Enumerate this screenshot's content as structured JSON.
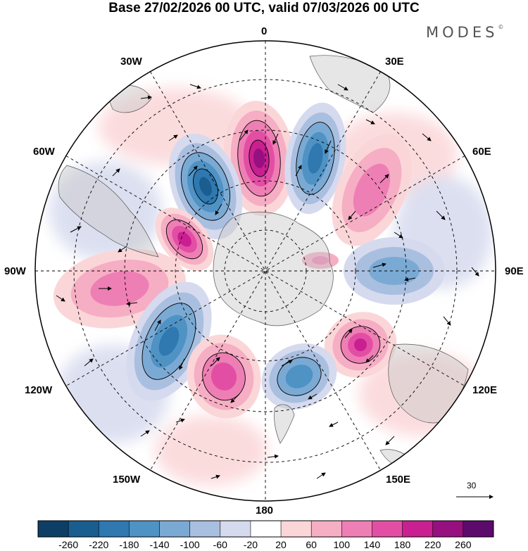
{
  "title": "Base 27/02/2026 00 UTC, valid 07/03/2026 00 UTC",
  "brand": "MODES",
  "brand_mark": "©",
  "longitude_labels": {
    "lon_0": "0",
    "lon_30e": "30E",
    "lon_60e": "60E",
    "lon_90e": "90E",
    "lon_120e": "120E",
    "lon_150e": "150E",
    "lon_180": "180",
    "lon_150w": "150W",
    "lon_120w": "120W",
    "lon_90w": "90W",
    "lon_60w": "60W",
    "lon_30w": "30W"
  },
  "reference_vector": "30",
  "colorbar": {
    "labels": [
      "-260",
      "-220",
      "-180",
      "-140",
      "-100",
      "-60",
      "-20",
      "20",
      "60",
      "100",
      "140",
      "180",
      "220",
      "260"
    ],
    "colors": [
      "#0d3f66",
      "#1a5d8f",
      "#2f78b0",
      "#4f92c4",
      "#7aaad4",
      "#a9bfe0",
      "#d6daee",
      "#ffffff",
      "#fbd6d8",
      "#f6aec4",
      "#ee7fb4",
      "#e34ea5",
      "#c91f91",
      "#97107f",
      "#5c0a6c"
    ]
  },
  "anomaly_centers": [
    {
      "name": "positive-center-0",
      "sign": "positive"
    },
    {
      "name": "negative-center-20e",
      "sign": "negative"
    },
    {
      "name": "negative-center-35w",
      "sign": "negative"
    },
    {
      "name": "positive-center-65e",
      "sign": "positive"
    },
    {
      "name": "positive-center-65w",
      "sign": "positive"
    },
    {
      "name": "negative-center-95e",
      "sign": "negative"
    },
    {
      "name": "positive-center-100w",
      "sign": "positive"
    },
    {
      "name": "positive-center-125e",
      "sign": "positive"
    },
    {
      "name": "negative-center-140w",
      "sign": "negative"
    },
    {
      "name": "negative-center-160e",
      "sign": "negative"
    },
    {
      "name": "positive-center-165w",
      "sign": "positive"
    }
  ]
}
